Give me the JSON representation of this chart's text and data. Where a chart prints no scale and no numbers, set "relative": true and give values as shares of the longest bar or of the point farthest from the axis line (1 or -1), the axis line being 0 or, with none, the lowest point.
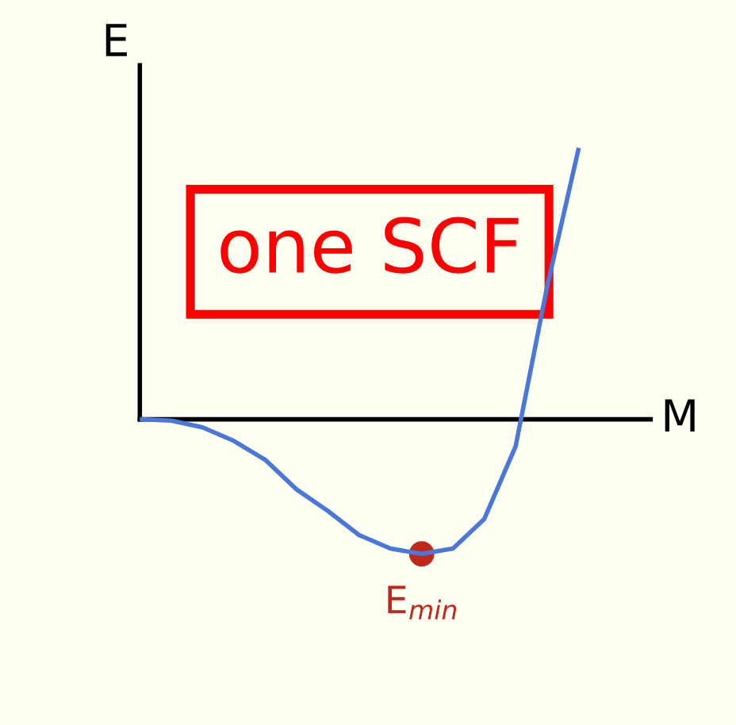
{
  "chart_data": {
    "type": "line",
    "relative": true,
    "xlabel": "M",
    "ylabel": "E",
    "categories": [
      null,
      null,
      null,
      null,
      null,
      null,
      null,
      null,
      null,
      null,
      null,
      null,
      null,
      null,
      null
    ],
    "series": [
      {
        "color": "#4a78d8",
        "values": [
          0,
          -0.005,
          -0.03,
          -0.08,
          -0.15,
          -0.26,
          -0.34,
          -0.43,
          -0.48,
          -0.5,
          -0.48,
          -0.37,
          -0.1,
          0.49,
          1.0
        ]
      }
    ],
    "annotations": [
      "one SCF",
      "E$_{min}$"
    ],
    "legend": false
  }
}
